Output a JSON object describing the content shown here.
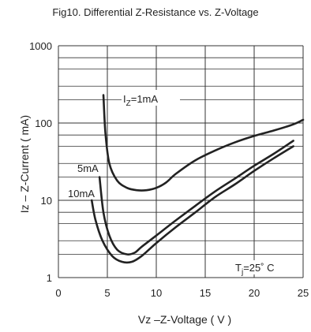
{
  "chart_data": {
    "type": "line",
    "title": "Fig10. Differential Z-Resistance vs. Z-Voltage",
    "xlabel": "Vz –Z-Voltage ( V )",
    "ylabel": "Iz – Z-Current ( mA)",
    "xlim": [
      0,
      25
    ],
    "ylim": [
      1,
      1000
    ],
    "yscale": "log",
    "grid": true,
    "x_ticks": [
      "0",
      "5",
      "10",
      "15",
      "20",
      "25"
    ],
    "y_ticks": [
      "1",
      "10",
      "100",
      "1000"
    ],
    "series": [
      {
        "name": "IZ=1mA",
        "x": [
          4.6,
          4.8,
          5.2,
          6.0,
          7.0,
          8.0,
          9.0,
          10.0,
          11.0,
          12.0,
          14.0,
          16.0,
          18.0,
          20.0,
          22.0,
          24.0,
          25.0
        ],
        "y": [
          230,
          75,
          30,
          18,
          14.5,
          13.5,
          13.5,
          14.5,
          17,
          22,
          33,
          44,
          56,
          68,
          80,
          96,
          110
        ]
      },
      {
        "name": "5mA",
        "x": [
          4.2,
          4.6,
          5.2,
          6.0,
          7.0,
          7.8,
          8.5,
          10.0,
          12.0,
          14.0,
          16.0,
          18.0,
          20.0,
          22.0,
          24.0
        ],
        "y": [
          20,
          7,
          3.5,
          2.3,
          2.0,
          2.1,
          2.5,
          3.5,
          5.5,
          8.5,
          13,
          19,
          28,
          40,
          59
        ]
      },
      {
        "name": "10mA",
        "x": [
          3.4,
          3.8,
          4.5,
          5.5,
          6.5,
          7.5,
          8.5,
          10.0,
          12.0,
          14.0,
          16.0,
          18.0,
          20.0,
          22.0,
          24.0
        ],
        "y": [
          10,
          5.5,
          3.0,
          1.9,
          1.6,
          1.6,
          1.9,
          2.8,
          4.5,
          7,
          11,
          16,
          24,
          35,
          50
        ]
      }
    ],
    "annotations": {
      "iz_1ma_prefix": "I",
      "iz_1ma_sub": "Z",
      "iz_1ma_rest": "=1mA",
      "label_5ma": "5mA",
      "label_10ma": "10mA",
      "tj_prefix": "T",
      "tj_sub": "j",
      "tj_rest": "=25˚ C"
    }
  }
}
